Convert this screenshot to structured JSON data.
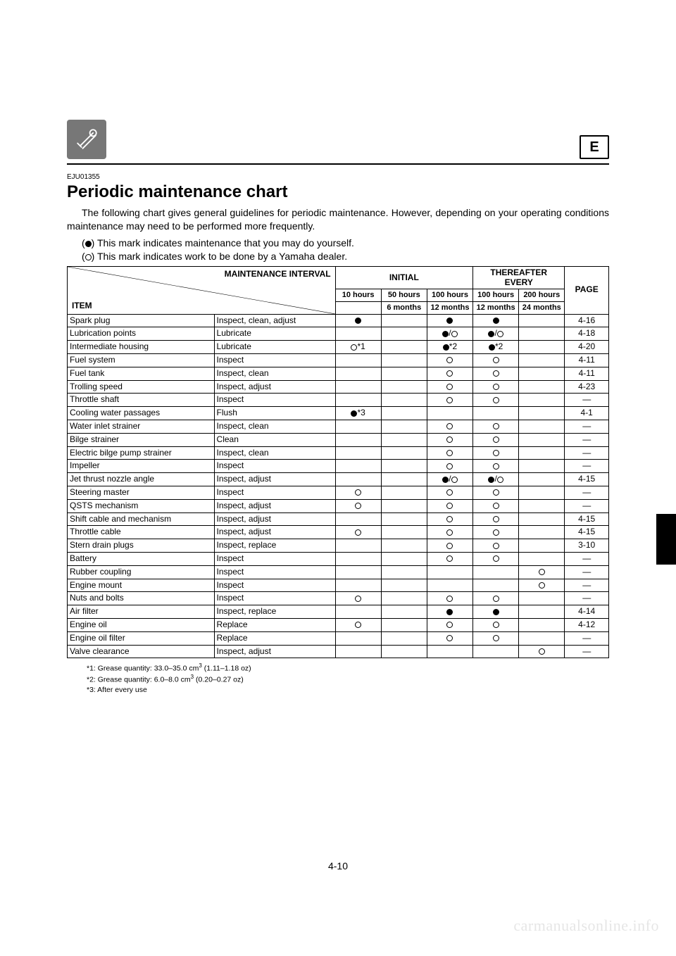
{
  "header": {
    "lang_letter": "E",
    "doc_code": "EJU01355",
    "title": "Periodic maintenance chart",
    "intro": "The following chart gives general guidelines for periodic maintenance. However, depending on your operating conditions maintenance may need to be performed more frequently.",
    "legend_filled": "This mark indicates maintenance that you may do yourself.",
    "legend_hollow": "This mark indicates work to be done by a Yamaha dealer."
  },
  "table": {
    "header": {
      "maint_interval": "MAINTENANCE INTERVAL",
      "item_label": "ITEM",
      "initial": "INITIAL",
      "thereafter": "THEREAFTER EVERY",
      "page": "PAGE",
      "cols": [
        {
          "hours": "10 hours",
          "months": ""
        },
        {
          "hours": "50 hours",
          "months": "6 months"
        },
        {
          "hours": "100 hours",
          "months": "12 months"
        },
        {
          "hours": "100 hours",
          "months": "12 months"
        },
        {
          "hours": "200 hours",
          "months": "24 months"
        }
      ]
    },
    "rows": [
      {
        "item": "Spark plug",
        "op": "Inspect, clean, adjust",
        "marks": [
          "filled",
          "",
          "filled",
          "filled",
          ""
        ],
        "page": "4-16"
      },
      {
        "item": "Lubrication points",
        "op": "Lubricate",
        "marks": [
          "",
          "",
          "both",
          "both",
          ""
        ],
        "page": "4-18"
      },
      {
        "item": "Intermediate housing",
        "op": "Lubricate",
        "marks": [
          "hollow*1",
          "",
          "filled*2",
          "filled*2",
          ""
        ],
        "page": "4-20"
      },
      {
        "item": "Fuel system",
        "op": "Inspect",
        "marks": [
          "",
          "",
          "hollow",
          "hollow",
          ""
        ],
        "page": "4-11"
      },
      {
        "item": "Fuel tank",
        "op": "Inspect, clean",
        "marks": [
          "",
          "",
          "hollow",
          "hollow",
          ""
        ],
        "page": "4-11"
      },
      {
        "item": "Trolling speed",
        "op": "Inspect, adjust",
        "marks": [
          "",
          "",
          "hollow",
          "hollow",
          ""
        ],
        "page": "4-23"
      },
      {
        "item": "Throttle shaft",
        "op": "Inspect",
        "marks": [
          "",
          "",
          "hollow",
          "hollow",
          ""
        ],
        "page": "—"
      },
      {
        "item": "Cooling water passages",
        "op": "Flush",
        "marks": [
          "filled*3",
          "",
          "",
          "",
          ""
        ],
        "page": "4-1"
      },
      {
        "item": "Water inlet strainer",
        "op": "Inspect, clean",
        "marks": [
          "",
          "",
          "hollow",
          "hollow",
          ""
        ],
        "page": "—"
      },
      {
        "item": "Bilge strainer",
        "op": "Clean",
        "marks": [
          "",
          "",
          "hollow",
          "hollow",
          ""
        ],
        "page": "—"
      },
      {
        "item": "Electric bilge pump strainer",
        "op": "Inspect, clean",
        "marks": [
          "",
          "",
          "hollow",
          "hollow",
          ""
        ],
        "page": "—"
      },
      {
        "item": "Impeller",
        "op": "Inspect",
        "marks": [
          "",
          "",
          "hollow",
          "hollow",
          ""
        ],
        "page": "—"
      },
      {
        "item": "Jet thrust nozzle angle",
        "op": "Inspect, adjust",
        "marks": [
          "",
          "",
          "both",
          "both",
          ""
        ],
        "page": "4-15"
      },
      {
        "item": "Steering master",
        "op": "Inspect",
        "marks": [
          "hollow",
          "",
          "hollow",
          "hollow",
          ""
        ],
        "page": "—"
      },
      {
        "item": "QSTS mechanism",
        "op": "Inspect, adjust",
        "marks": [
          "hollow",
          "",
          "hollow",
          "hollow",
          ""
        ],
        "page": "—"
      },
      {
        "item": "Shift cable and mechanism",
        "op": "Inspect, adjust",
        "marks": [
          "",
          "",
          "hollow",
          "hollow",
          ""
        ],
        "page": "4-15"
      },
      {
        "item": "Throttle cable",
        "op": "Inspect, adjust",
        "marks": [
          "hollow",
          "",
          "hollow",
          "hollow",
          ""
        ],
        "page": "4-15"
      },
      {
        "item": "Stern drain plugs",
        "op": "Inspect, replace",
        "marks": [
          "",
          "",
          "hollow",
          "hollow",
          ""
        ],
        "page": "3-10"
      },
      {
        "item": "Battery",
        "op": "Inspect",
        "marks": [
          "",
          "",
          "hollow",
          "hollow",
          ""
        ],
        "page": "—"
      },
      {
        "item": "Rubber coupling",
        "op": "Inspect",
        "marks": [
          "",
          "",
          "",
          "",
          "hollow"
        ],
        "page": "—"
      },
      {
        "item": "Engine mount",
        "op": "Inspect",
        "marks": [
          "",
          "",
          "",
          "",
          "hollow"
        ],
        "page": "—"
      },
      {
        "item": "Nuts and bolts",
        "op": "Inspect",
        "marks": [
          "hollow",
          "",
          "hollow",
          "hollow",
          ""
        ],
        "page": "—"
      },
      {
        "item": "Air filter",
        "op": "Inspect, replace",
        "marks": [
          "",
          "",
          "filled",
          "filled",
          ""
        ],
        "page": "4-14"
      },
      {
        "item": "Engine oil",
        "op": "Replace",
        "marks": [
          "hollow",
          "",
          "hollow",
          "hollow",
          ""
        ],
        "page": "4-12"
      },
      {
        "item": "Engine oil filter",
        "op": "Replace",
        "marks": [
          "",
          "",
          "hollow",
          "hollow",
          ""
        ],
        "page": "—"
      },
      {
        "item": "Valve clearance",
        "op": "Inspect, adjust",
        "marks": [
          "",
          "",
          "",
          "",
          "hollow"
        ],
        "page": "—"
      }
    ]
  },
  "footnotes": {
    "n1_pre": "*1: Grease quantity: 33.0–35.0 cm",
    "n1_post": " (1.11–1.18 oz)",
    "n2_pre": "*2: Grease quantity: 6.0–8.0 cm",
    "n2_post": " (0.20–0.27 oz)",
    "n3": "*3: After every use",
    "sup": "3"
  },
  "footer": {
    "page_number": "4-10",
    "watermark": "carmanualsonline.info"
  }
}
